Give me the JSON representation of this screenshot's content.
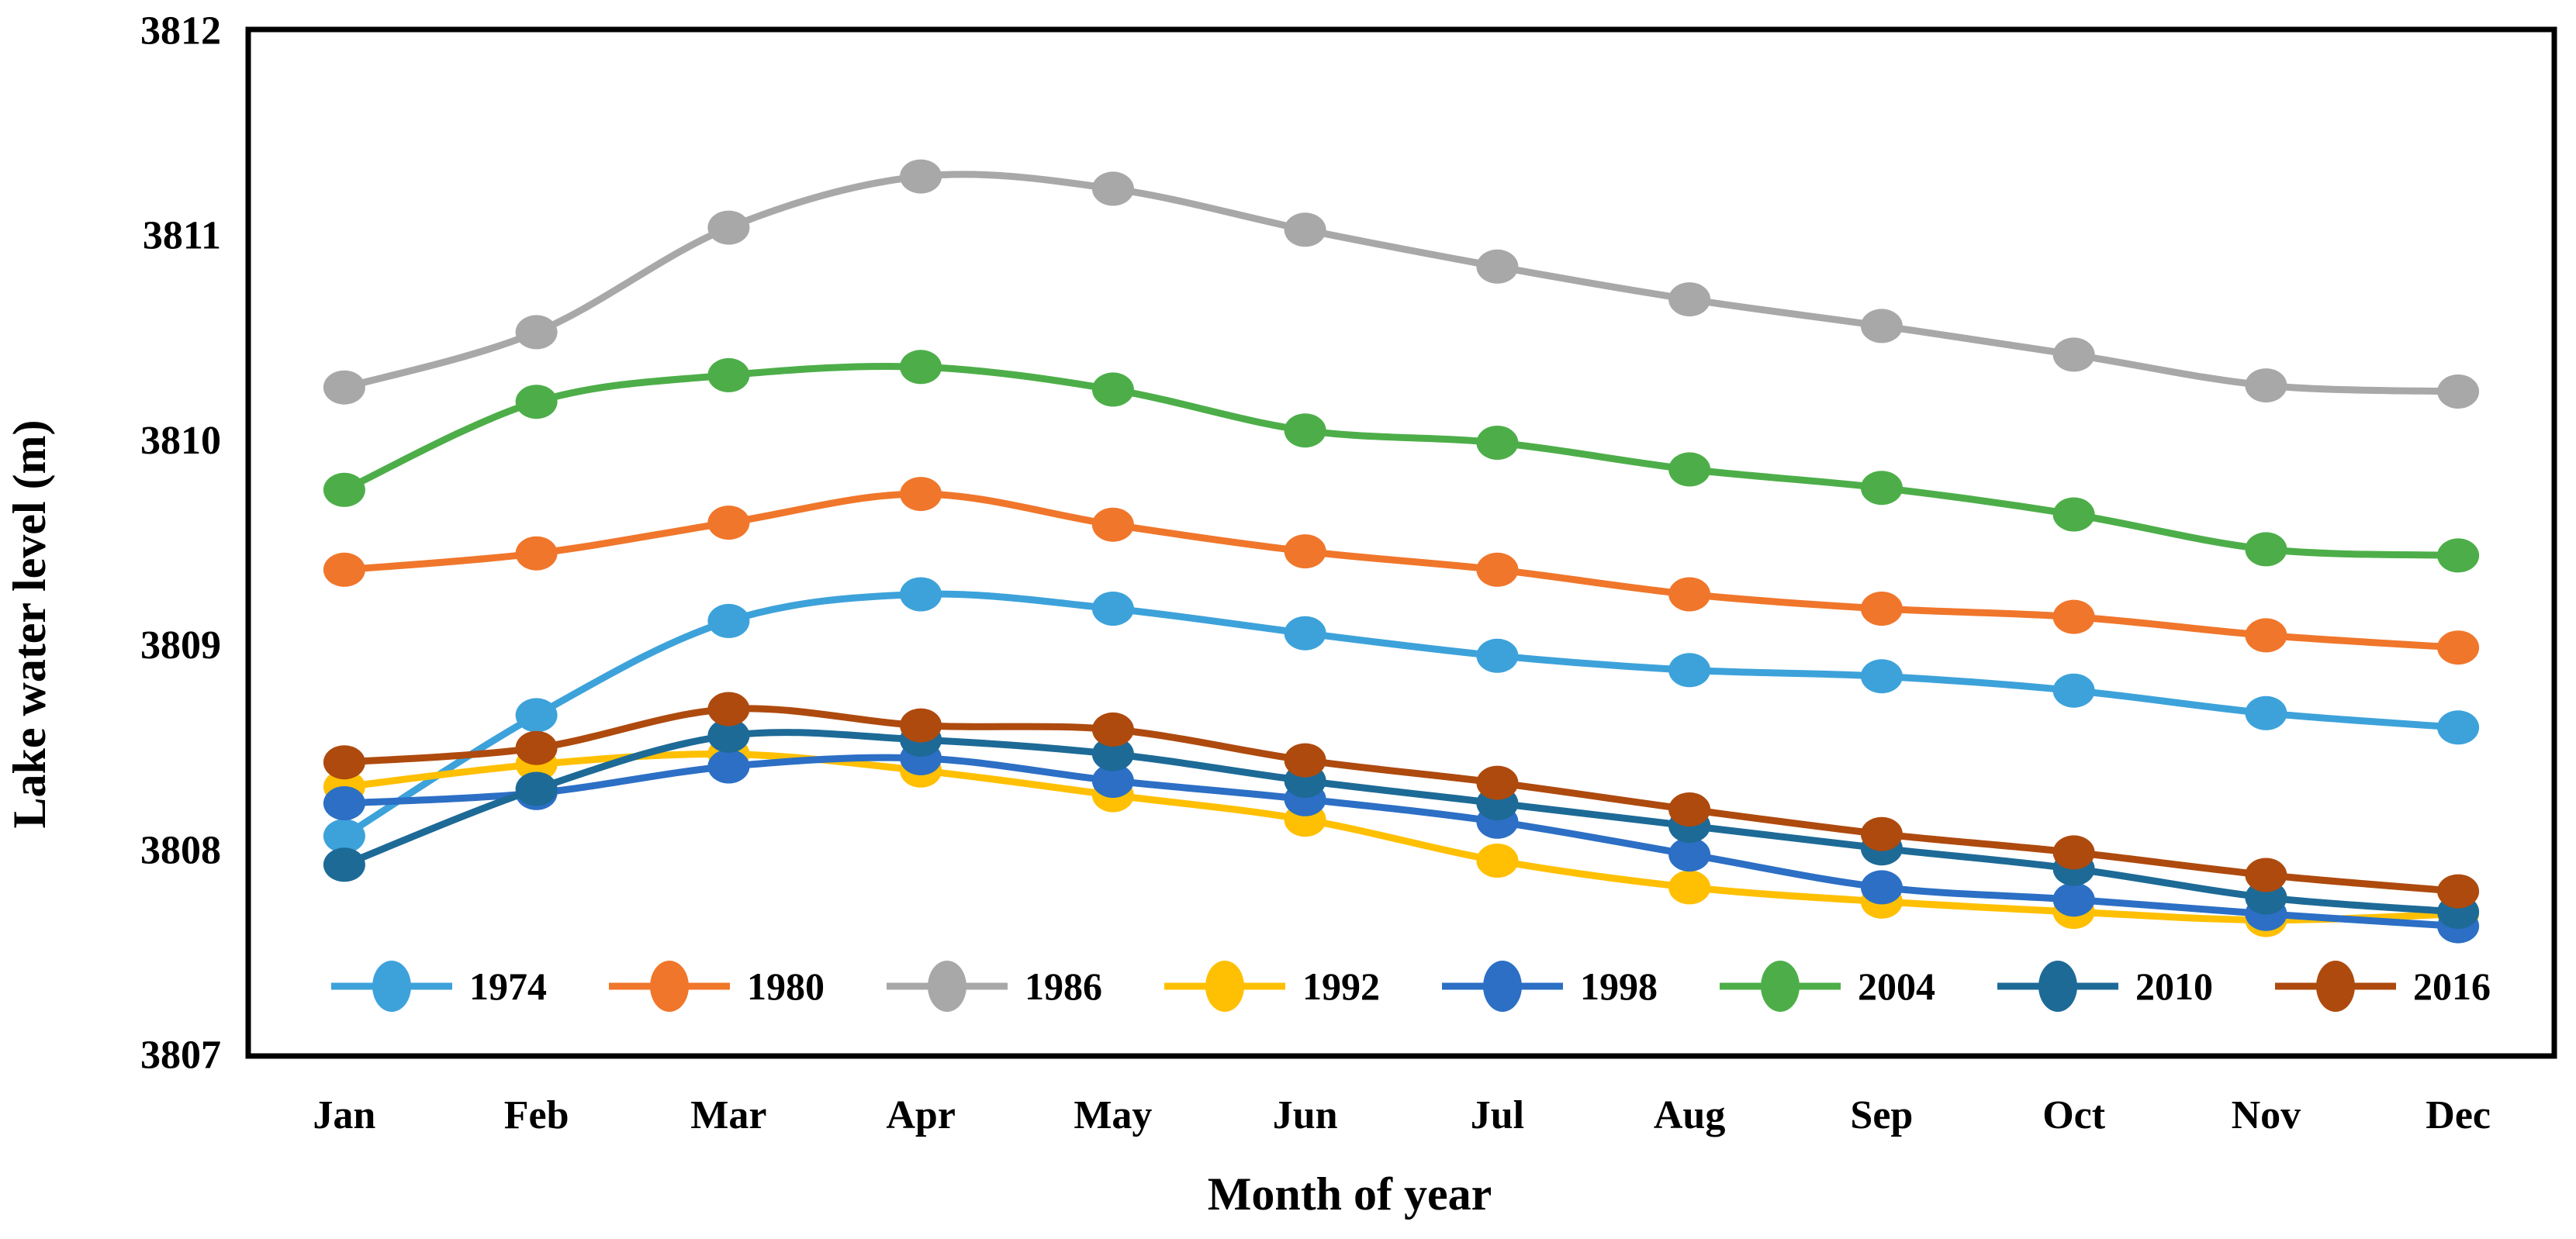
{
  "chart_data": {
    "type": "line",
    "title": "",
    "xlabel": "Month of year",
    "ylabel": "Lake water level (m)",
    "categories": [
      "Jan",
      "Feb",
      "Mar",
      "Apr",
      "May",
      "Jun",
      "Jul",
      "Aug",
      "Sep",
      "Oct",
      "Nov",
      "Dec"
    ],
    "y_ticks": [
      "3807",
      "3808",
      "3809",
      "3810",
      "3811",
      "3812"
    ],
    "ylim": [
      3807,
      3812
    ],
    "grid": false,
    "legend_position": "bottom-inside",
    "marker": "circle",
    "line_style": "smooth",
    "axis_color": "#000000",
    "background_color": "#ffffff",
    "series": [
      {
        "name": "1974",
        "color": "#3DA2DA",
        "values": [
          3808.07,
          3808.66,
          3809.12,
          3809.25,
          3809.18,
          3809.06,
          3808.95,
          3808.88,
          3808.85,
          3808.78,
          3808.67,
          3808.6
        ]
      },
      {
        "name": "1980",
        "color": "#F0762B",
        "values": [
          3809.37,
          3809.45,
          3809.6,
          3809.74,
          3809.59,
          3809.46,
          3809.37,
          3809.25,
          3809.18,
          3809.14,
          3809.05,
          3808.99
        ]
      },
      {
        "name": "1986",
        "color": "#A8A8A8",
        "values": [
          3810.26,
          3810.53,
          3811.04,
          3811.29,
          3811.23,
          3811.03,
          3810.85,
          3810.69,
          3810.56,
          3810.42,
          3810.27,
          3810.24
        ]
      },
      {
        "name": "1992",
        "color": "#FFC003",
        "values": [
          3808.31,
          3808.42,
          3808.47,
          3808.39,
          3808.27,
          3808.15,
          3807.95,
          3807.82,
          3807.75,
          3807.7,
          3807.66,
          3807.69
        ]
      },
      {
        "name": "1998",
        "color": "#2C6FC5",
        "values": [
          3808.23,
          3808.28,
          3808.41,
          3808.45,
          3808.34,
          3808.25,
          3808.14,
          3807.98,
          3807.82,
          3807.76,
          3807.69,
          3807.63
        ]
      },
      {
        "name": "2004",
        "color": "#4DAE49",
        "values": [
          3809.76,
          3810.19,
          3810.32,
          3810.36,
          3810.25,
          3810.05,
          3809.99,
          3809.86,
          3809.77,
          3809.64,
          3809.47,
          3809.44
        ]
      },
      {
        "name": "2010",
        "color": "#1D6A97",
        "values": [
          3807.93,
          3808.3,
          3808.56,
          3808.54,
          3808.47,
          3808.34,
          3808.23,
          3808.12,
          3808.01,
          3807.91,
          3807.77,
          3807.7
        ]
      },
      {
        "name": "2016",
        "color": "#AE4A0E",
        "values": [
          3808.43,
          3808.5,
          3808.69,
          3808.61,
          3808.59,
          3808.44,
          3808.33,
          3808.2,
          3808.08,
          3807.99,
          3807.88,
          3807.8
        ]
      }
    ]
  }
}
